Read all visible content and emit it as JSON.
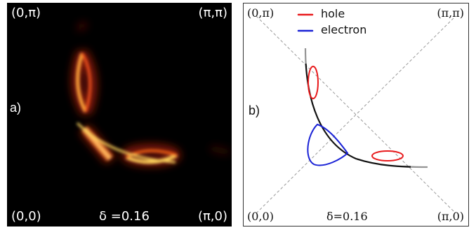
{
  "panel_a": {
    "label": "a)",
    "corners": {
      "top_left": "(0,π)",
      "top_right": "(π,π)",
      "bottom_left": "(0,0)",
      "bottom_right": "(π,0)"
    },
    "delta_label": "δ =0.16"
  },
  "panel_b": {
    "label": "b)",
    "corners": {
      "top_left": "(0,π)",
      "top_right": "(π,π)",
      "bottom_left": "(0,0)",
      "bottom_right": "(π,0)"
    },
    "delta_label": "δ=0.16",
    "legend": [
      {
        "label": "hole",
        "color": "#e8191b"
      },
      {
        "label": "electron",
        "color": "#1a22d6"
      }
    ]
  }
}
